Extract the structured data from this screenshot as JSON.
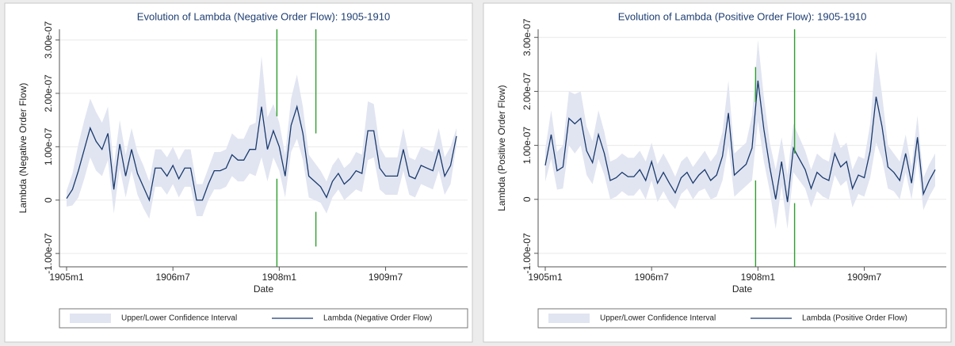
{
  "chart_data": [
    {
      "type": "line",
      "title": "Evolution of Lambda (Negative Order Flow): 1905-1910",
      "xlabel": "Date",
      "ylabel": "Lambda (Negative Order Flow)",
      "categories": [
        "1905m1",
        null,
        null,
        null,
        null,
        null,
        null,
        null,
        null,
        null,
        null,
        null,
        null,
        null,
        null,
        null,
        null,
        null,
        "1906m7",
        null,
        null,
        null,
        null,
        null,
        null,
        null,
        null,
        null,
        null,
        null,
        null,
        null,
        null,
        null,
        null,
        null,
        "1908m1",
        null,
        null,
        null,
        null,
        null,
        null,
        null,
        null,
        null,
        null,
        null,
        null,
        null,
        null,
        null,
        null,
        null,
        "1909m7",
        null,
        null,
        null,
        null,
        null,
        null,
        null,
        null,
        null,
        null,
        null,
        null
      ],
      "ylim": [
        -1.25e-07,
        3.2e-07
      ],
      "yticks": [
        {
          "value": -1e-07,
          "label": "-1.00e-07"
        },
        0,
        {
          "value": 1e-07,
          "label": "1.00e-07"
        },
        {
          "value": 2e-07,
          "label": "2.00e-07"
        },
        {
          "value": 3e-07,
          "label": "3.00e-07"
        }
      ],
      "grid": true,
      "series": [
        {
          "name": "Upper/Lower Confidence Interval",
          "color": "#e1e5f1",
          "lower": [
            -1.2e-08,
            -1e-08,
            5e-09,
            4e-08,
            8e-08,
            5.5e-08,
            4.5e-08,
            7.5e-08,
            -2.5e-08,
            6e-08,
            5e-09,
            5.5e-08,
            1e-08,
            -1.5e-08,
            -3.5e-08,
            2.5e-08,
            2.5e-08,
            1e-08,
            3e-08,
            5e-09,
            2.5e-08,
            2.5e-08,
            -3e-08,
            -3e-08,
            0,
            2e-08,
            2e-08,
            2.5e-08,
            4.5e-08,
            3.5e-08,
            3.5e-08,
            5e-08,
            4.5e-08,
            8e-08,
            3.5e-08,
            8e-08,
            5.5e-08,
            5e-09,
            9e-08,
            1.15e-07,
            7.5e-08,
            5e-09,
            0,
            -5e-09,
            -2.5e-08,
            5e-09,
            2e-08,
            0,
            1e-08,
            2e-08,
            1.5e-08,
            7.5e-08,
            8e-08,
            2e-08,
            1e-08,
            1e-08,
            1e-08,
            5.5e-08,
            1e-08,
            5e-09,
            3e-08,
            2.5e-08,
            2e-08,
            5.5e-08,
            1e-08,
            3e-08,
            1.05e-07
          ],
          "upper": [
            1.8e-08,
            5e-08,
            1.05e-07,
            1.5e-07,
            1.9e-07,
            1.65e-07,
            1.45e-07,
            1.75e-07,
            6.5e-08,
            1.5e-07,
            8.5e-08,
            1.35e-07,
            9e-08,
            6.5e-08,
            3.5e-08,
            9.5e-08,
            9.5e-08,
            8e-08,
            1e-07,
            7.5e-08,
            9.5e-08,
            9.5e-08,
            3e-08,
            3e-08,
            6e-08,
            9e-08,
            9e-08,
            9.5e-08,
            1.25e-07,
            1.15e-07,
            1.15e-07,
            1.4e-07,
            1.45e-07,
            2.7e-07,
            1.55e-07,
            1.8e-07,
            1.45e-07,
            8.5e-08,
            1.9e-07,
            2.35e-07,
            1.75e-07,
            8.5e-08,
            7e-08,
            5.5e-08,
            3.5e-08,
            6.5e-08,
            8e-08,
            6e-08,
            7e-08,
            9e-08,
            8.5e-08,
            1.85e-07,
            1.8e-07,
            1e-07,
            8e-08,
            8e-08,
            8e-08,
            1.35e-07,
            8e-08,
            7.5e-08,
            1e-07,
            9.5e-08,
            9e-08,
            1.35e-07,
            8e-08,
            1e-07,
            1.35e-07
          ]
        },
        {
          "name": "Lambda (Negative Order Flow)",
          "color": "#1a3a6e",
          "values": [
            3e-09,
            2e-08,
            5.5e-08,
            9.5e-08,
            1.35e-07,
            1.1e-07,
            9.5e-08,
            1.25e-07,
            2e-08,
            1.05e-07,
            4.5e-08,
            9.5e-08,
            5e-08,
            2.5e-08,
            0,
            6e-08,
            6e-08,
            4.5e-08,
            6.5e-08,
            4e-08,
            6e-08,
            6e-08,
            0,
            0,
            3e-08,
            5.5e-08,
            5.5e-08,
            6e-08,
            8.5e-08,
            7.5e-08,
            7.5e-08,
            9.5e-08,
            9.5e-08,
            1.75e-07,
            9.5e-08,
            1.3e-07,
            1e-07,
            4.5e-08,
            1.4e-07,
            1.75e-07,
            1.25e-07,
            4.5e-08,
            3.5e-08,
            2.5e-08,
            5e-09,
            3.5e-08,
            5e-08,
            3e-08,
            4e-08,
            5.5e-08,
            5e-08,
            1.3e-07,
            1.3e-07,
            6e-08,
            4.5e-08,
            4.5e-08,
            4.5e-08,
            9.5e-08,
            4.5e-08,
            4e-08,
            6.5e-08,
            6e-08,
            5.5e-08,
            9.5e-08,
            4.5e-08,
            6.5e-08,
            1.2e-07
          ]
        }
      ],
      "vlines": {
        "color": "#2e9e2e",
        "lines": [
          {
            "x": 35.6,
            "segments": [
              [
                1.57e-07,
                3.2e-07
              ],
              [
                -1.25e-07,
                4e-08
              ]
            ]
          },
          {
            "x": 42.2,
            "segments": [
              [
                1.25e-07,
                3.2e-07
              ],
              [
                -8.7e-08,
                -2.2e-08
              ]
            ]
          }
        ]
      }
    },
    {
      "type": "line",
      "title": "Evolution of Lambda (Positive Order Flow): 1905-1910",
      "xlabel": "Date",
      "ylabel": "Lambda (Positive Order Flow)",
      "categories": [
        "1905m1",
        null,
        null,
        null,
        null,
        null,
        null,
        null,
        null,
        null,
        null,
        null,
        null,
        null,
        null,
        null,
        null,
        null,
        "1906m7",
        null,
        null,
        null,
        null,
        null,
        null,
        null,
        null,
        null,
        null,
        null,
        null,
        null,
        null,
        null,
        null,
        null,
        "1908m1",
        null,
        null,
        null,
        null,
        null,
        null,
        null,
        null,
        null,
        null,
        null,
        null,
        null,
        null,
        null,
        null,
        null,
        "1909m7",
        null,
        null,
        null,
        null,
        null,
        null,
        null,
        null,
        null,
        null,
        null,
        null
      ],
      "ylim": [
        -1.25e-07,
        3.15e-07
      ],
      "yticks": [
        {
          "value": -1e-07,
          "label": "-1.00e-07"
        },
        0,
        {
          "value": 1e-07,
          "label": "1.00e-07"
        },
        {
          "value": 2e-07,
          "label": "2.00e-07"
        },
        {
          "value": 3e-07,
          "label": "3.00e-07"
        }
      ],
      "grid": true,
      "series": [
        {
          "name": "Upper/Lower Confidence Interval",
          "color": "#e1e5f1",
          "lower": [
            3.3e-08,
            7.5e-08,
            1.8e-08,
            2e-08,
            1e-07,
            8.5e-08,
            1e-07,
            4.5e-08,
            2.8e-08,
            7.5e-08,
            4.5e-08,
            0,
            5e-09,
            1.5e-08,
            7e-09,
            7e-09,
            2e-08,
            0,
            3.5e-08,
            -5e-09,
            1.5e-08,
            -5e-09,
            -1.8e-08,
            1e-08,
            2e-08,
            0,
            1.5e-08,
            2e-08,
            0,
            5e-09,
            3.5e-08,
            1e-07,
            5e-09,
            1.5e-08,
            2.5e-08,
            3.5e-08,
            1.45e-07,
            7e-08,
            1.5e-08,
            -5.5e-08,
            2.5e-08,
            -5.5e-08,
            5e-08,
            3.5e-08,
            2e-08,
            -1.5e-08,
            1.5e-08,
            5e-09,
            0,
            4.5e-08,
            2.5e-08,
            3.5e-08,
            -1.5e-08,
            1e-08,
            5e-09,
            4e-08,
            1.05e-07,
            7.5e-08,
            2e-08,
            1.5e-08,
            0,
            5e-08,
            0,
            7.5e-08,
            -2e-08,
            5e-09,
            2.5e-08
          ],
          "upper": [
            9.3e-08,
            1.65e-07,
            8.8e-08,
            1e-07,
            2e-07,
            1.95e-07,
            2e-07,
            1.35e-07,
            1.08e-07,
            1.65e-07,
            1.25e-07,
            7e-08,
            7.5e-08,
            8.5e-08,
            7.7e-08,
            7.7e-08,
            9e-08,
            7e-08,
            1.05e-07,
            6.5e-08,
            8.5e-08,
            6.5e-08,
            4.2e-08,
            7e-08,
            8e-08,
            6e-08,
            7.5e-08,
            9e-08,
            7e-08,
            8.5e-08,
            1.25e-07,
            2.2e-07,
            8.5e-08,
            9.5e-08,
            1.05e-07,
            1.55e-07,
            2.95e-07,
            1.9e-07,
            1.05e-07,
            5.5e-08,
            1.15e-07,
            4.5e-08,
            1.4e-07,
            1.15e-07,
            9e-08,
            5.5e-08,
            8.5e-08,
            7.5e-08,
            7e-08,
            1.25e-07,
            9.5e-08,
            1.05e-07,
            5.5e-08,
            8e-08,
            7.5e-08,
            1.4e-07,
            2.75e-07,
            1.95e-07,
            1e-07,
            8.5e-08,
            7e-08,
            1.2e-07,
            6e-08,
            1.55e-07,
            4e-08,
            6.5e-08,
            8.5e-08
          ]
        },
        {
          "name": "Lambda (Positive Order Flow)",
          "color": "#1a3a6e",
          "values": [
            6.3e-08,
            1.2e-07,
            5.3e-08,
            6e-08,
            1.5e-07,
            1.4e-07,
            1.5e-07,
            9e-08,
            6.8e-08,
            1.2e-07,
            8.5e-08,
            3.5e-08,
            4e-08,
            5e-08,
            4.2e-08,
            4.2e-08,
            5.5e-08,
            3.5e-08,
            7e-08,
            3e-08,
            5e-08,
            3e-08,
            1.2e-08,
            4e-08,
            5e-08,
            3e-08,
            4.5e-08,
            5.5e-08,
            3.5e-08,
            4.5e-08,
            8e-08,
            1.6e-07,
            4.5e-08,
            5.5e-08,
            6.5e-08,
            9.5e-08,
            2.2e-07,
            1.3e-07,
            6e-08,
            0,
            7e-08,
            -5e-09,
            9.5e-08,
            7.5e-08,
            5.5e-08,
            2e-08,
            5e-08,
            4e-08,
            3.5e-08,
            8.5e-08,
            6e-08,
            7e-08,
            2e-08,
            4.5e-08,
            4e-08,
            9e-08,
            1.9e-07,
            1.35e-07,
            6e-08,
            5e-08,
            3.5e-08,
            8.5e-08,
            3e-08,
            1.15e-07,
            1e-08,
            3.5e-08,
            5.5e-08
          ]
        }
      ],
      "vlines": {
        "color": "#2e9e2e",
        "lines": [
          {
            "x": 35.6,
            "segments": [
              [
                1.8e-07,
                2.45e-07
              ],
              [
                -1.25e-07,
                3.5e-08
              ]
            ]
          },
          {
            "x": 42.2,
            "segments": [
              [
                8.5e-08,
                3.15e-07
              ],
              [
                -1.25e-07,
                -7e-09
              ]
            ]
          }
        ]
      }
    }
  ]
}
